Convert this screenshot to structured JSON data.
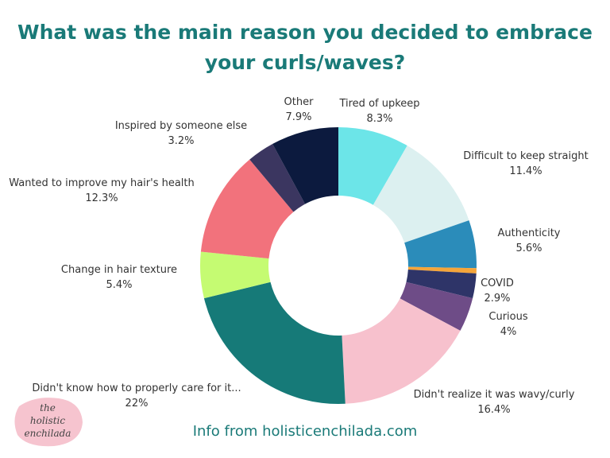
{
  "chart_data": {
    "type": "pie",
    "donut": true,
    "title": "What was the main reason you decided to embrace your curls/waves?",
    "start": "top",
    "direction": "clockwise",
    "slices": [
      {
        "label": "Tired of upkeep",
        "value": 8.3,
        "display": "8.3%",
        "color": "#6ce5e8"
      },
      {
        "label": "Difficult to keep straight",
        "value": 11.4,
        "display": "11.4%",
        "color": "#dcf0f0"
      },
      {
        "label": "Authenticity",
        "value": 5.6,
        "display": "5.6%",
        "color": "#2b8cba"
      },
      {
        "label": "",
        "value": 0.6,
        "display": "",
        "color": "#f5a53a"
      },
      {
        "label": "COVID",
        "value": 2.9,
        "display": "2.9%",
        "color": "#2e3468"
      },
      {
        "label": "Curious",
        "value": 4,
        "display": "4%",
        "color": "#6e4c87"
      },
      {
        "label": "Didn't realize it was wavy/curly",
        "value": 16.4,
        "display": "16.4%",
        "color": "#f7c1cd"
      },
      {
        "label": "Didn't know how to properly care for it...",
        "value": 22,
        "display": "22%",
        "color": "#167a78"
      },
      {
        "label": "Change in hair texture",
        "value": 5.4,
        "display": "5.4%",
        "color": "#c5fb72"
      },
      {
        "label": "Wanted to improve my hair's health",
        "value": 12.3,
        "display": "12.3%",
        "color": "#f2727c"
      },
      {
        "label": "Inspired by someone else",
        "value": 3.2,
        "display": "3.2%",
        "color": "#3b3660"
      },
      {
        "label": "Other",
        "value": 7.9,
        "display": "7.9%",
        "color": "#0c1a3e"
      }
    ]
  },
  "source": "Info from holisticenchilada.com",
  "logo": {
    "text": "the holistic enchilada",
    "color": "#f6c4cf"
  },
  "colors": {
    "title": "#1a7a78"
  }
}
